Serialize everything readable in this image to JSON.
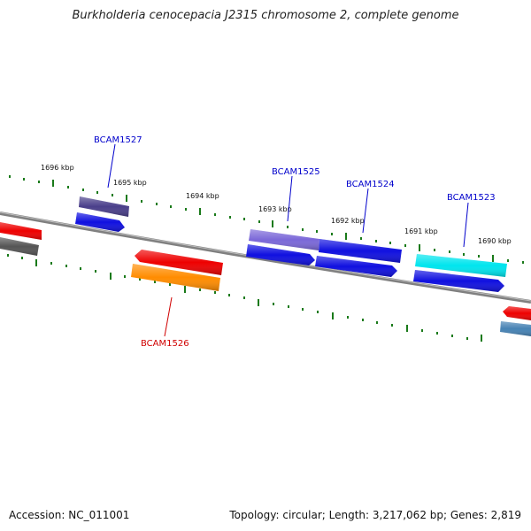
{
  "title": "Burkholderia cenocepacia J2315 chromosome 2, complete genome",
  "accession_text": "Accession: NC_011001",
  "summary_text": "Topology: circular; Length: 3,217,062 bp; Genes: 2,819",
  "ticks": [
    {
      "label": "1696 kbp"
    },
    {
      "label": "1695 kbp"
    },
    {
      "label": "1694 kbp"
    },
    {
      "label": "1693 kbp"
    },
    {
      "label": "1692 kbp"
    },
    {
      "label": "1691 kbp"
    },
    {
      "label": "1690 kbp"
    }
  ],
  "gene_labels": [
    {
      "name": "BCAM1527"
    },
    {
      "name": "BCAM1525"
    },
    {
      "name": "BCAM1524"
    },
    {
      "name": "BCAM1523"
    },
    {
      "name": "BCAM1526"
    }
  ],
  "colors": {
    "backbone": "#808080",
    "tick": "#1a7a1a",
    "label_blue": "#0000cc",
    "label_red": "#d00000",
    "blue": "#1010e0",
    "red": "#ee0000",
    "orange": "#ff8c00",
    "cyan": "#00e5ee",
    "slate_purple": "#4a3f8a",
    "medium_purple": "#7b68d8",
    "dark_gray": "#555555",
    "steel_blue": "#4682b4"
  }
}
